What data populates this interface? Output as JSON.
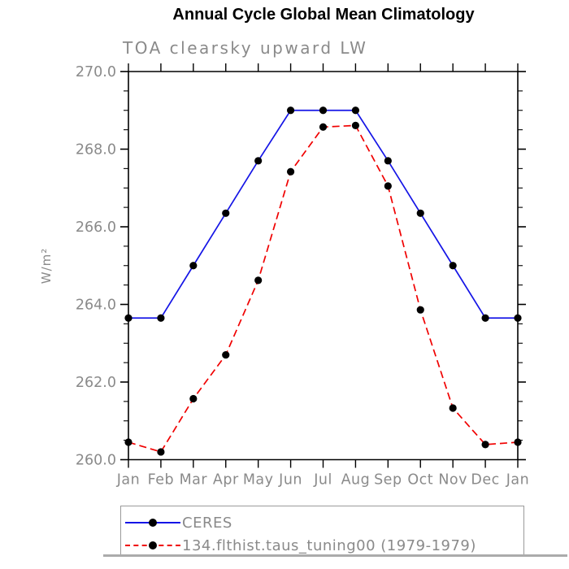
{
  "chart_data": {
    "type": "line",
    "title": "Annual Cycle Global Mean Climatology",
    "subtitle": "TOA clearsky upward LW",
    "ylabel": "W/m²",
    "x_categories": [
      "Jan",
      "Feb",
      "Mar",
      "Apr",
      "May",
      "Jun",
      "Jul",
      "Aug",
      "Sep",
      "Oct",
      "Nov",
      "Dec",
      "Jan"
    ],
    "ylim": [
      260.0,
      270.0
    ],
    "ytick_major_interval": 2.0,
    "ytick_minor_interval": 0.5,
    "ytick_labels": [
      "260.0",
      "262.0",
      "264.0",
      "266.0",
      "268.0",
      "270.0"
    ],
    "grid": false,
    "legend_position": "bottom-left",
    "series": [
      {
        "name": "CERES",
        "color": "#1515e6",
        "line_style": "solid",
        "marker": "circle",
        "marker_color": "#000000",
        "values": [
          263.65,
          263.65,
          265.0,
          266.35,
          267.7,
          269.0,
          269.0,
          269.0,
          267.7,
          266.35,
          265.0,
          263.65,
          263.65
        ]
      },
      {
        "name": "134.flthist.taus_tuning00 (1979-1979)",
        "color": "#f00000",
        "line_style": "dashed",
        "marker": "circle",
        "marker_color": "#000000",
        "values": [
          260.45,
          260.2,
          261.57,
          262.7,
          264.62,
          267.42,
          268.57,
          268.61,
          267.05,
          263.86,
          261.33,
          260.39,
          260.45
        ]
      }
    ]
  },
  "colors": {
    "axis": "#000000",
    "labels": "#8a8a8a",
    "title": "#000000",
    "legend_border": "#9a9a9a",
    "bottom_rule": "#ababab"
  }
}
